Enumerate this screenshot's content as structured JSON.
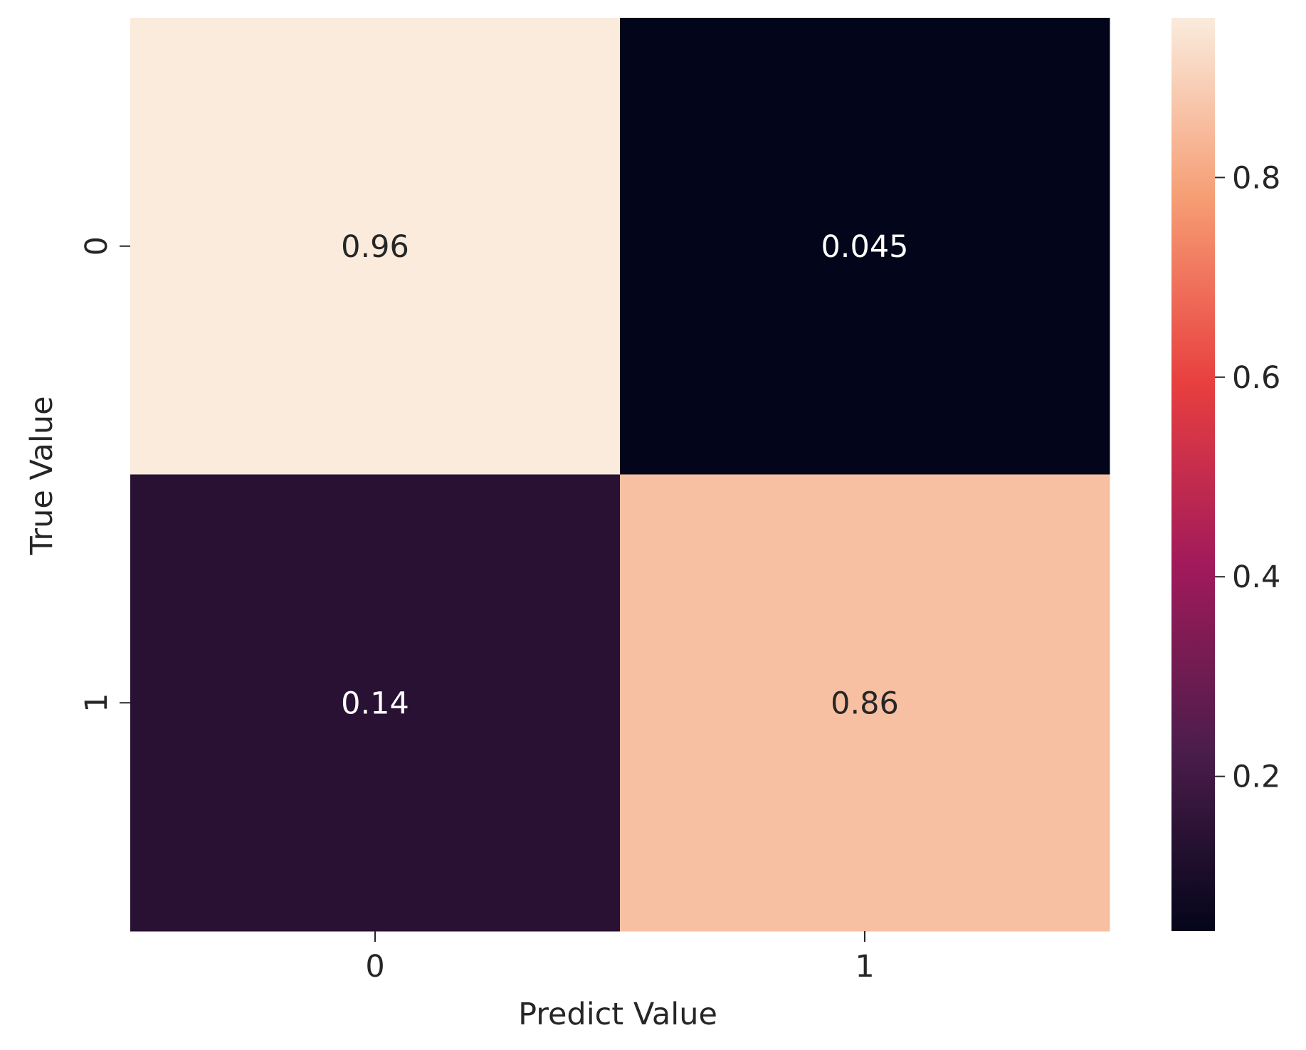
{
  "chart_data": {
    "type": "heatmap",
    "xlabel": "Predict Value",
    "ylabel": "True Value",
    "x_categories": [
      "0",
      "1"
    ],
    "y_categories": [
      "0",
      "1"
    ],
    "values": [
      [
        0.96,
        0.045
      ],
      [
        0.14,
        0.86
      ]
    ],
    "annotations": [
      [
        "0.96",
        "0.045"
      ],
      [
        "0.14",
        "0.86"
      ]
    ],
    "colormap": "rocket",
    "colorbar": {
      "range": [
        0.045,
        0.96
      ],
      "ticks": [
        0.2,
        0.4,
        0.6,
        0.8
      ],
      "tick_labels": [
        "0.2",
        "0.4",
        "0.6",
        "0.8"
      ]
    },
    "colors": {
      "stops": [
        "#03051a",
        "#4c1d4b",
        "#a11a5b",
        "#e83f3f",
        "#f69c73",
        "#faebdd"
      ]
    }
  }
}
